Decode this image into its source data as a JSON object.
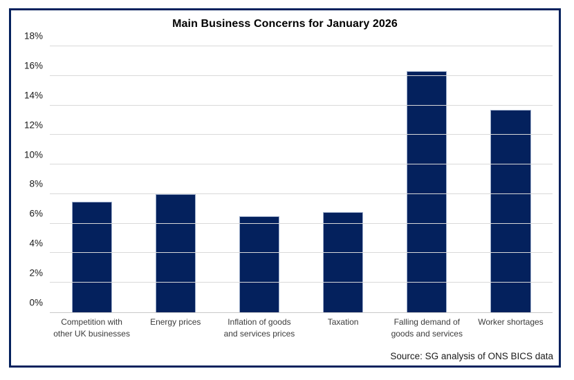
{
  "figure": {
    "title": "Main Business Concerns for January 2026",
    "source": "Source: SG analysis of ONS BICS data"
  },
  "chart_data": {
    "type": "bar",
    "title": "Main Business Concerns for January 2026",
    "categories": [
      "Competition with other UK businesses",
      "Energy prices",
      "Inflation of goods and services prices",
      "Taxation",
      "Falling demand of goods and services",
      "Worker shortages"
    ],
    "values": [
      7.5,
      8.0,
      6.5,
      6.8,
      16.3,
      13.7
    ],
    "unit": "%",
    "xlabel": "",
    "ylabel": "",
    "ylim": [
      0,
      18
    ],
    "ytick_step": 2,
    "ytick_labels": [
      "0%",
      "2%",
      "4%",
      "6%",
      "8%",
      "10%",
      "12%",
      "14%",
      "16%",
      "18%"
    ],
    "grid": true,
    "legend": "none",
    "annotation": "Source: SG analysis of ONS BICS data"
  },
  "colors": {
    "bar_fill": "#04215d",
    "bar_border": "#9daecb",
    "gridline": "#d9d9d9",
    "axis_line": "#c9c9c9",
    "frame_border": "#04215d",
    "title_text": "#000000",
    "label_text": "#3a3a3a"
  }
}
